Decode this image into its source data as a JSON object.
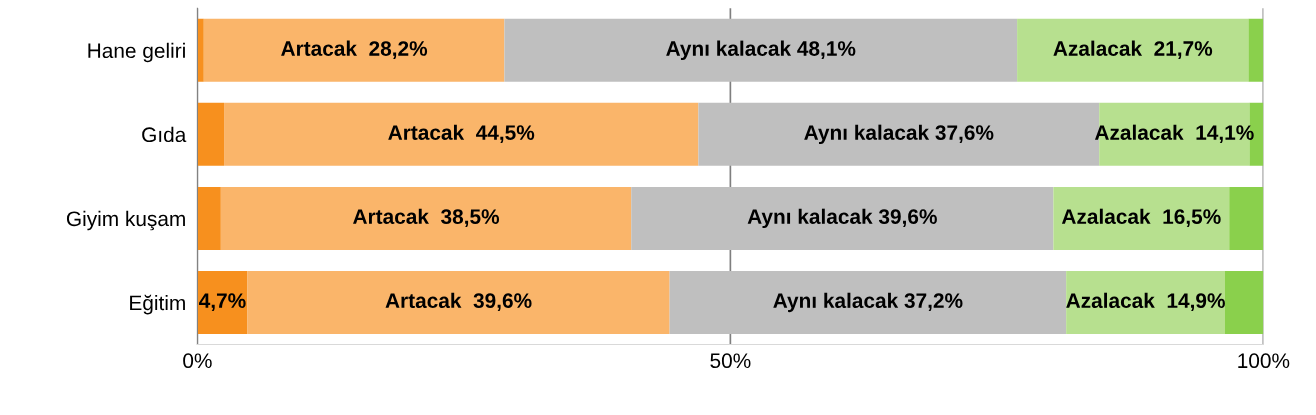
{
  "chart_data": {
    "type": "bar",
    "orientation": "horizontal",
    "stacked": true,
    "categories": [
      "Hane geliri",
      "Gıda",
      "Giyim kuşam",
      "Eğitim"
    ],
    "series": [
      {
        "color": "#f7901e",
        "values": [
          0.6,
          2.5,
          2.2,
          4.7
        ],
        "value_labels": [
          null,
          null,
          null,
          "4,7%"
        ]
      },
      {
        "color": "#fab56a",
        "values": [
          28.2,
          44.5,
          38.5,
          39.6
        ],
        "value_labels": [
          "Artacak  28,2%",
          "Artacak  44,5%",
          "Artacak  38,5%",
          "Artacak  39,6%"
        ]
      },
      {
        "color": "#bfbfbf",
        "values": [
          48.1,
          37.6,
          39.6,
          37.2
        ],
        "value_labels": [
          "Aynı kalacak 48,1%",
          "Aynı kalacak 37,6%",
          "Aynı kalacak 39,6%",
          "Aynı kalacak 37,2%"
        ]
      },
      {
        "color": "#b7e08f",
        "values": [
          21.7,
          14.1,
          16.5,
          14.9
        ],
        "value_labels": [
          "Azalacak  21,7%",
          "Azalacak  14,1%",
          "Azalacak  16,5%",
          "Azalacak  14,9%"
        ]
      },
      {
        "color": "#8ad04c",
        "values": [
          1.4,
          1.3,
          3.2,
          3.6
        ],
        "value_labels": [
          null,
          null,
          null,
          null
        ]
      }
    ],
    "xlim": [
      0,
      100
    ],
    "xticks": [
      {
        "value": 0,
        "label": "0%"
      },
      {
        "value": 50,
        "label": "50%"
      },
      {
        "value": 100,
        "label": "100%"
      }
    ],
    "grid": "x"
  }
}
